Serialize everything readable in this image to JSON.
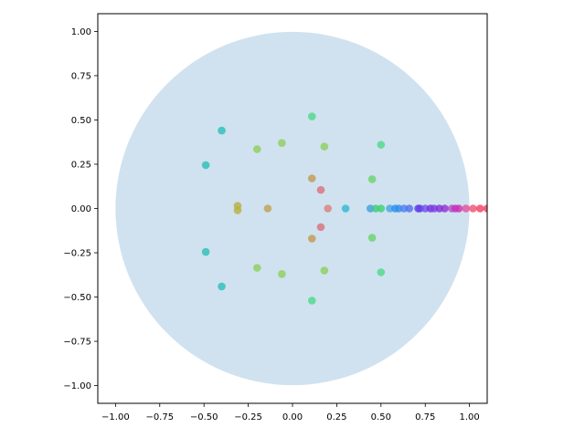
{
  "chart_data": {
    "type": "scatter",
    "title": "",
    "xlabel": "",
    "ylabel": "",
    "xlim": [
      -1.1,
      1.1
    ],
    "ylim": [
      -1.1,
      1.1
    ],
    "grid": false,
    "xticks": [
      "−1.00",
      "−0.75",
      "−0.50",
      "−0.25",
      "0.00",
      "0.25",
      "0.50",
      "0.75",
      "1.00"
    ],
    "xtick_values": [
      -1.0,
      -0.75,
      -0.5,
      -0.25,
      0.0,
      0.25,
      0.5,
      0.75,
      1.0
    ],
    "yticks": [
      "−1.00",
      "−0.75",
      "−0.50",
      "−0.25",
      "0.00",
      "0.25",
      "0.50",
      "0.75",
      "1.00"
    ],
    "ytick_values": [
      -1.0,
      -0.75,
      -0.5,
      -0.25,
      0.0,
      0.25,
      0.5,
      0.75,
      1.0
    ],
    "unit_circle": {
      "center": [
        0,
        0
      ],
      "radius": 1.0,
      "color": "#d0e2ef"
    },
    "points": [
      {
        "x": 0.11,
        "y": 0.52,
        "color": "#4cd98a"
      },
      {
        "x": 0.11,
        "y": -0.52,
        "color": "#4cd98a"
      },
      {
        "x": -0.4,
        "y": 0.44,
        "color": "#2bbfb8"
      },
      {
        "x": -0.4,
        "y": -0.44,
        "color": "#2bbfb8"
      },
      {
        "x": -0.49,
        "y": 0.245,
        "color": "#2bbfb8"
      },
      {
        "x": -0.49,
        "y": -0.245,
        "color": "#2bbfb8"
      },
      {
        "x": -0.06,
        "y": 0.37,
        "color": "#8ccf5a"
      },
      {
        "x": -0.06,
        "y": -0.37,
        "color": "#8ccf5a"
      },
      {
        "x": -0.2,
        "y": 0.335,
        "color": "#8ccf5a"
      },
      {
        "x": -0.2,
        "y": -0.335,
        "color": "#8ccf5a"
      },
      {
        "x": 0.18,
        "y": 0.35,
        "color": "#8ccf5a"
      },
      {
        "x": 0.18,
        "y": -0.35,
        "color": "#8ccf5a"
      },
      {
        "x": 0.5,
        "y": 0.36,
        "color": "#4cd98a"
      },
      {
        "x": 0.5,
        "y": -0.36,
        "color": "#4cd98a"
      },
      {
        "x": 0.45,
        "y": 0.165,
        "color": "#66d46a"
      },
      {
        "x": 0.45,
        "y": -0.165,
        "color": "#66d46a"
      },
      {
        "x": 0.11,
        "y": 0.17,
        "color": "#c09a50"
      },
      {
        "x": 0.11,
        "y": -0.17,
        "color": "#c09a50"
      },
      {
        "x": 0.16,
        "y": 0.105,
        "color": "#d9707a"
      },
      {
        "x": 0.16,
        "y": -0.105,
        "color": "#d9707a"
      },
      {
        "x": 0.2,
        "y": 0.0,
        "color": "#d9807a"
      },
      {
        "x": -0.31,
        "y": 0.015,
        "color": "#b8b040"
      },
      {
        "x": -0.31,
        "y": -0.01,
        "color": "#b8b040"
      },
      {
        "x": -0.14,
        "y": 0.0,
        "color": "#c0a050"
      },
      {
        "x": 0.3,
        "y": 0.0,
        "color": "#30b8d0"
      },
      {
        "x": 0.44,
        "y": 0.0,
        "color": "#40a0e0"
      },
      {
        "x": 0.47,
        "y": 0.0,
        "color": "#40c880"
      },
      {
        "x": 0.5,
        "y": 0.0,
        "color": "#40d070"
      },
      {
        "x": 0.55,
        "y": 0.0,
        "color": "#40a8e8"
      },
      {
        "x": 0.58,
        "y": 0.0,
        "color": "#3090e8"
      },
      {
        "x": 0.6,
        "y": 0.0,
        "color": "#3090e8"
      },
      {
        "x": 0.63,
        "y": 0.0,
        "color": "#5080f0"
      },
      {
        "x": 0.66,
        "y": 0.0,
        "color": "#5070f0"
      },
      {
        "x": 0.71,
        "y": 0.0,
        "color": "#6040e8"
      },
      {
        "x": 0.72,
        "y": 0.0,
        "color": "#6040e8"
      },
      {
        "x": 0.75,
        "y": 0.0,
        "color": "#7050e8"
      },
      {
        "x": 0.78,
        "y": 0.0,
        "color": "#7030e0"
      },
      {
        "x": 0.8,
        "y": 0.0,
        "color": "#8040e0"
      },
      {
        "x": 0.83,
        "y": 0.0,
        "color": "#8030d8"
      },
      {
        "x": 0.86,
        "y": 0.0,
        "color": "#9030d0"
      },
      {
        "x": 0.9,
        "y": 0.0,
        "color": "#b050c8"
      },
      {
        "x": 0.92,
        "y": 0.0,
        "color": "#c030c0"
      },
      {
        "x": 0.94,
        "y": 0.0,
        "color": "#d030b0"
      },
      {
        "x": 0.98,
        "y": 0.0,
        "color": "#e050a0"
      },
      {
        "x": 1.02,
        "y": 0.0,
        "color": "#f05070"
      },
      {
        "x": 1.06,
        "y": 0.0,
        "color": "#f04060"
      },
      {
        "x": 1.1,
        "y": 0.0,
        "color": "#f04060"
      }
    ]
  }
}
